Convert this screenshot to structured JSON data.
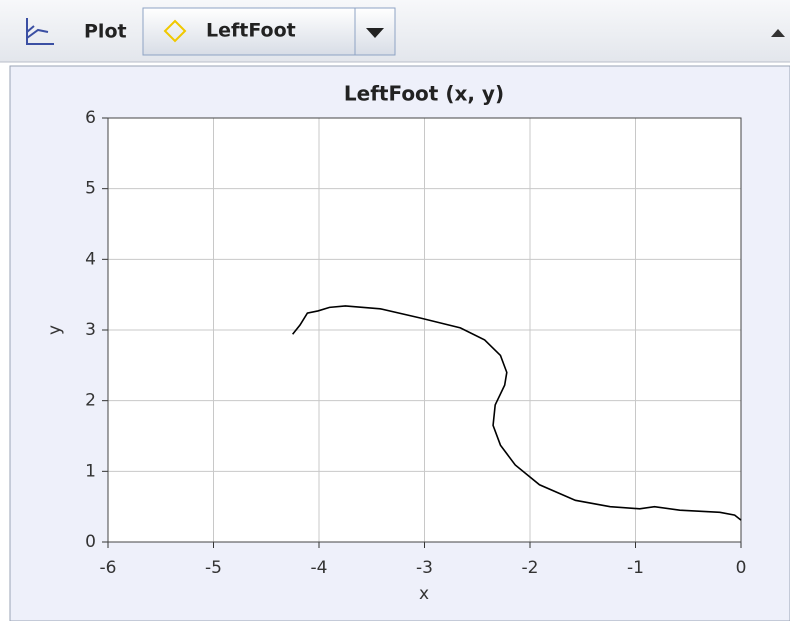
{
  "toolbar": {
    "label": "Plot",
    "selected": "LeftFoot"
  },
  "chart_data": {
    "type": "line",
    "title": "LeftFoot (x, y)",
    "x_label": "x",
    "y_label": "y",
    "x": [
      -4.25,
      -4.18,
      -4.11,
      -4.01,
      -3.9,
      -3.75,
      -3.42,
      -3.04,
      -2.66,
      -2.43,
      -2.28,
      -2.22,
      -2.24,
      -2.33,
      -2.35,
      -2.28,
      -2.14,
      -1.91,
      -1.57,
      -1.24,
      -0.96,
      -0.82,
      -0.58,
      -0.2,
      -0.06,
      0.0
    ],
    "values": [
      2.94,
      3.07,
      3.24,
      3.27,
      3.32,
      3.34,
      3.3,
      3.17,
      3.03,
      2.86,
      2.64,
      2.4,
      2.22,
      1.94,
      1.65,
      1.37,
      1.09,
      0.81,
      0.59,
      0.5,
      0.47,
      0.5,
      0.45,
      0.42,
      0.38,
      0.31
    ],
    "color": "#000000",
    "xlim": [
      -6,
      0
    ],
    "xticks": [
      -6,
      -5,
      -4,
      -3,
      -2,
      -1,
      0
    ],
    "ylim": [
      0,
      6
    ],
    "yticks": [
      0,
      1,
      2,
      3,
      4,
      5,
      6
    ],
    "grid": true
  }
}
